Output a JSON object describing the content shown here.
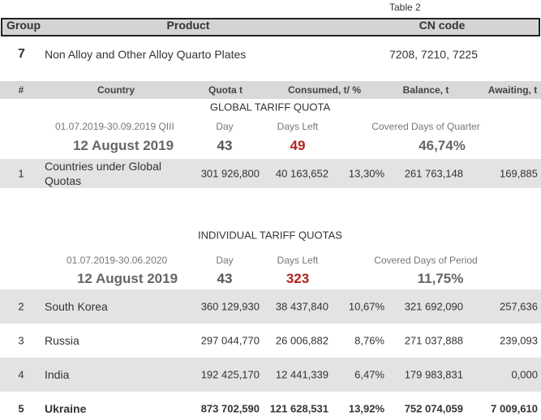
{
  "table_label": "Table 2",
  "header": [
    "Group",
    "Product",
    "CN code"
  ],
  "product": {
    "group": "7",
    "name": "Non Alloy and Other Alloy Quarto Plates",
    "cn_code": "7208, 7210, 7225"
  },
  "columns": [
    "#",
    "Country",
    "Quota t",
    "Consumed, t/ %",
    "Balance, t",
    "Awaiting, t"
  ],
  "sections": [
    {
      "title": "GLOBAL TARIFF QUOTA",
      "period": "01.07.2019-30.09.2019  QIII",
      "day_label": "Day",
      "days_left_label": "Days Left",
      "covered_label": "Covered Days of Quarter",
      "date": "12 August 2019",
      "day": "43",
      "days_left": "49",
      "covered": "46,74%",
      "rows": [
        [
          "1",
          "Countries under Global Quotas",
          "301 926,800",
          "40 163,652",
          "13,30%",
          "261 763,148",
          "169,885"
        ]
      ]
    },
    {
      "title": "INDIVIDUAL TARIFF QUOTAS",
      "period": "01.07.2019-30.06.2020",
      "day_label": "Day",
      "days_left_label": "Days Left",
      "covered_label": "Covered Days of Period",
      "date": "12 August 2019",
      "day": "43",
      "days_left": "323",
      "covered": "11,75%",
      "rows": [
        [
          "2",
          "South Korea",
          "360 129,930",
          "38 437,840",
          "10,67%",
          "321 692,090",
          "257,636"
        ],
        [
          "3",
          "Russia",
          "297 044,770",
          "26 006,882",
          "8,76%",
          "271 037,888",
          "239,093"
        ],
        [
          "4",
          "India",
          "192 425,170",
          "12 441,339",
          "6,47%",
          "179 983,831",
          "0,000"
        ],
        [
          "5",
          "Ukraine",
          "873 702,590",
          "121 628,531",
          "13,92%",
          "752 074,059",
          "7 009,610"
        ]
      ]
    }
  ]
}
